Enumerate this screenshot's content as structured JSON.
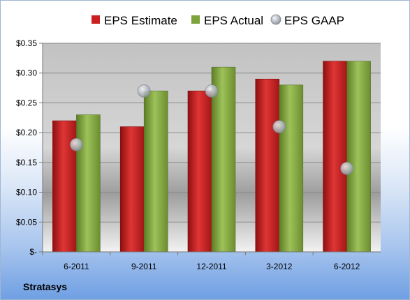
{
  "chart_data": {
    "type": "bar",
    "categories": [
      "6-2011",
      "9-2011",
      "12-2011",
      "3-2012",
      "6-2012"
    ],
    "series": [
      {
        "name": "EPS Estimate",
        "kind": "bar",
        "color": "#cc1f1f",
        "values": [
          0.22,
          0.21,
          0.27,
          0.29,
          0.32
        ]
      },
      {
        "name": "EPS Actual",
        "kind": "bar",
        "color": "#7da33a",
        "values": [
          0.23,
          0.27,
          0.31,
          0.28,
          0.32
        ]
      },
      {
        "name": "EPS GAAP",
        "kind": "marker",
        "color": "#b9bfc7",
        "values": [
          0.18,
          0.27,
          0.27,
          0.21,
          0.14
        ]
      }
    ],
    "y_ticks": [
      "$-",
      "$0.05",
      "$0.10",
      "$0.15",
      "$0.20",
      "$0.25",
      "$0.30",
      "$0.35"
    ],
    "ylim": [
      0,
      0.35
    ],
    "grid": true,
    "legend_position": "top"
  },
  "footer": {
    "company": "Stratasys"
  }
}
